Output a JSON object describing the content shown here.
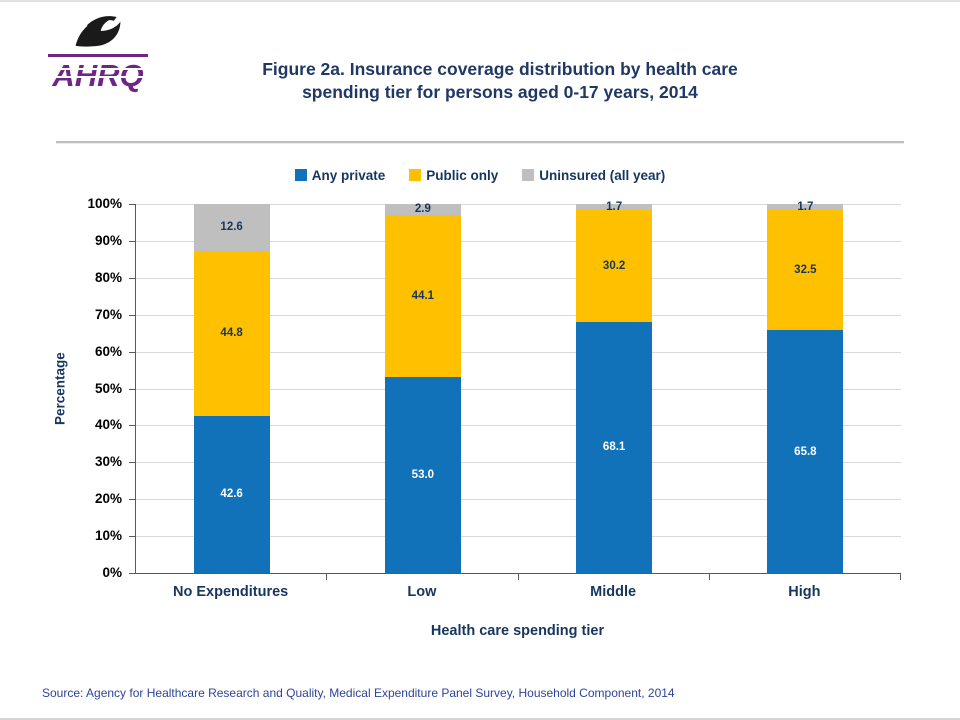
{
  "header": {
    "logo_text": "AHRQ",
    "title_line1": "Figure 2a. Insurance coverage distribution by health care",
    "title_line2": "spending tier for persons aged 0-17 years, 2014"
  },
  "footer": {
    "source": "Source: Agency for Healthcare Research and Quality, Medical Expenditure Panel Survey, Household Component, 2014"
  },
  "chart_data": {
    "type": "bar",
    "stacked": true,
    "title": "Figure 2a. Insurance coverage distribution by health care spending tier for persons aged 0-17 years, 2014",
    "categories": [
      "No Expenditures",
      "Low",
      "Middle",
      "High"
    ],
    "series": [
      {
        "name": "Any private",
        "color": "#1172BA",
        "label_color": "#FFFFFF",
        "values": [
          42.6,
          53.0,
          68.1,
          65.8
        ]
      },
      {
        "name": "Public only",
        "color": "#FFC000",
        "label_color": "#17365D",
        "values": [
          44.8,
          44.1,
          30.2,
          32.5
        ]
      },
      {
        "name": "Uninsured (all year)",
        "color": "#BFBFBF",
        "label_color": "#17365D",
        "values": [
          12.6,
          2.9,
          1.7,
          1.7
        ]
      }
    ],
    "xlabel": "Health care spending tier",
    "ylabel": "Percentage",
    "ylim": [
      0,
      100
    ],
    "ytick_step": 10,
    "yticks": [
      "0%",
      "10%",
      "20%",
      "30%",
      "40%",
      "50%",
      "60%",
      "70%",
      "80%",
      "90%",
      "100%"
    ],
    "legend_position": "top",
    "grid": true
  }
}
